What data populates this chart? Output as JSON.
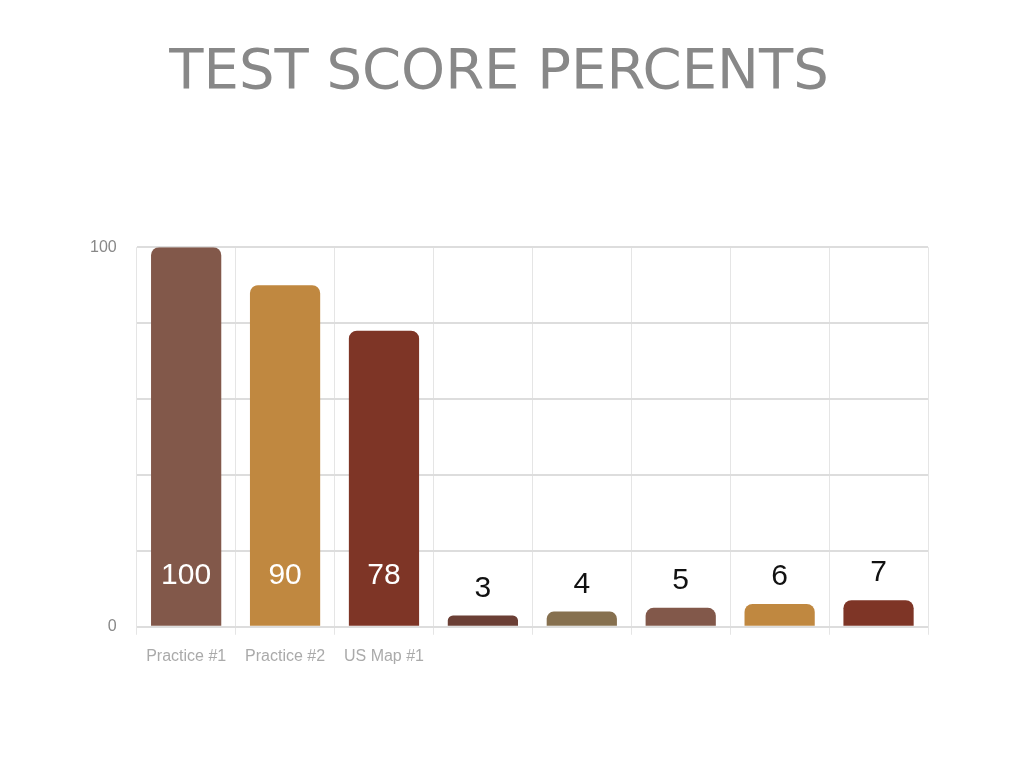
{
  "chart_data": {
    "type": "bar",
    "title": "TEST SCORE PERCENTS",
    "categories": [
      "Practice #1",
      "Practice #2",
      "US Map #1",
      null,
      null,
      null,
      null,
      null
    ],
    "values": [
      100,
      90,
      78,
      3,
      4,
      5,
      6,
      7
    ],
    "colors": [
      "#82584a",
      "#c08840",
      "#7e3526",
      "#6b3f35",
      "#86704f",
      "#82584a",
      "#c08840",
      "#7e3526"
    ],
    "ylim": [
      0,
      100
    ],
    "yticks": [
      0,
      {
        "value": 20,
        "label": null
      },
      {
        "value": 40,
        "label": null
      },
      {
        "value": 60,
        "label": null
      },
      {
        "value": 80,
        "label": null
      },
      100
    ],
    "grid": true,
    "legend": false,
    "data_labels": true
  }
}
